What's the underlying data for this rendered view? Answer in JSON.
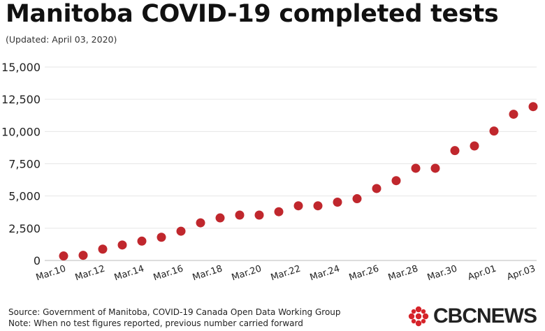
{
  "header": {
    "title": "Manitoba COVID-19 completed tests",
    "subtitle": "(Updated: April 03, 2020)"
  },
  "footer": {
    "source": "Source: Government of Manitoba, COVID-19 Canada Open Data Working Group",
    "note": "Note: When no test figures reported, previous number carried forward"
  },
  "brand": {
    "logo_text": "CBCNEWS",
    "logo_icon": "cbc-gem-icon"
  },
  "colors": {
    "marker": "#c0272d",
    "grid": "#e6e6e6",
    "text": "#222222"
  },
  "chart_data": {
    "type": "scatter",
    "title": "Manitoba COVID-19 completed tests",
    "subtitle": "(Updated: April 03, 2020)",
    "xlabel": "",
    "ylabel": "",
    "ylim": [
      0,
      15000
    ],
    "yticks": [
      "0",
      "2,500",
      "5,000",
      "7,500",
      "10,000",
      "12,500",
      "15,000"
    ],
    "ytick_values": [
      0,
      2500,
      5000,
      7500,
      10000,
      12500,
      15000
    ],
    "xtick_labels": [
      "Mar.10",
      "Mar.12",
      "Mar.14",
      "Mar.16",
      "Mar.18",
      "Mar.20",
      "Mar.22",
      "Mar.24",
      "Mar.26",
      "Mar.28",
      "Mar.30",
      "Apr.01",
      "Apr.03"
    ],
    "grid": true,
    "legend": "none",
    "x": [
      "Mar.10",
      "Mar.11",
      "Mar.12",
      "Mar.13",
      "Mar.14",
      "Mar.15",
      "Mar.16",
      "Mar.17",
      "Mar.18",
      "Mar.19",
      "Mar.20",
      "Mar.21",
      "Mar.22",
      "Mar.23",
      "Mar.24",
      "Mar.25",
      "Mar.26",
      "Mar.27",
      "Mar.28",
      "Mar.29",
      "Mar.30",
      "Mar.31",
      "Apr.01",
      "Apr.02",
      "Apr.03"
    ],
    "values": [
      350,
      400,
      880,
      1200,
      1500,
      1800,
      2270,
      2920,
      3300,
      3520,
      3520,
      3780,
      4240,
      4240,
      4520,
      4790,
      5580,
      6190,
      7150,
      7150,
      8520,
      8880,
      10040,
      11340,
      11930
    ]
  }
}
